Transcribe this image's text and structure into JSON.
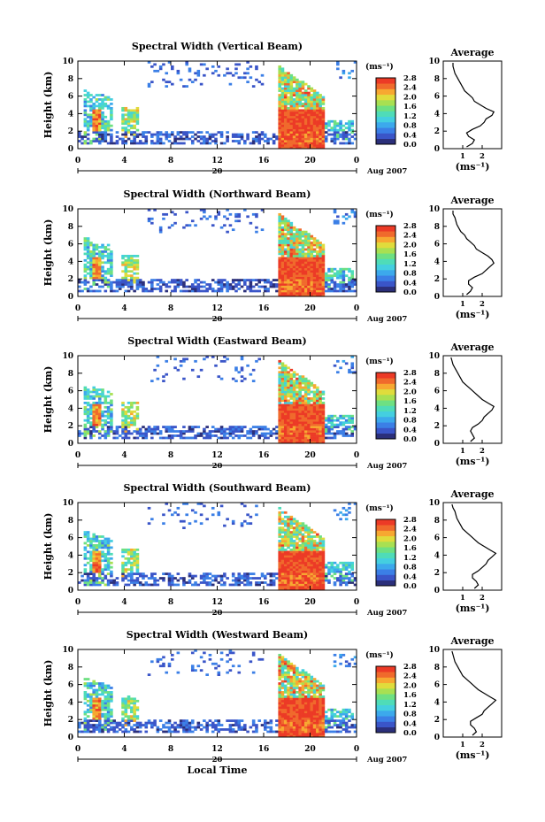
{
  "colorbar": {
    "unit": "(ms⁻¹)",
    "ticks": [
      "2.8",
      "2.4",
      "2.0",
      "1.6",
      "1.2",
      "0.8",
      "0.4",
      "0.0"
    ],
    "range": [
      0,
      2.8
    ],
    "colors": [
      "#2b2f7a",
      "#3a55c8",
      "#3b7fe6",
      "#3ca9ec",
      "#44cfe0",
      "#4fdcb8",
      "#6ee082",
      "#a8e052",
      "#e0dc3c",
      "#f7a831",
      "#f06a2c",
      "#ec3a26"
    ]
  },
  "xaxis": {
    "label": "Local Time",
    "ticks": [
      "0",
      "4",
      "8",
      "12",
      "16",
      "20",
      "0"
    ],
    "date_day": "20",
    "date_month": "Aug 2007",
    "range": [
      0,
      24
    ]
  },
  "yaxis": {
    "label": "Height (km)",
    "ticks": [
      "0",
      "2",
      "4",
      "6",
      "8",
      "10"
    ],
    "range": [
      0,
      10
    ]
  },
  "avg": {
    "title": "Average",
    "xlabel": "(ms⁻¹)",
    "heights": [
      0.2,
      0.6,
      1.0,
      1.4,
      1.8,
      2.2,
      2.6,
      3.0,
      3.4,
      3.8,
      4.2,
      4.6,
      5.0,
      5.4,
      5.8,
      6.2,
      6.6,
      7.0,
      7.4,
      7.8,
      8.2,
      8.6,
      9.0,
      9.4,
      9.8
    ]
  },
  "chart_data": [
    {
      "type": "heatmap",
      "title": "Spectral Width (Vertical Beam)",
      "xlabel": "",
      "ylabel": "Height (km)",
      "xlim": [
        0,
        24
      ],
      "ylim": [
        0,
        10
      ],
      "value_range": [
        0,
        2.8
      ],
      "avg_ticks": [
        "1",
        "2"
      ],
      "avg_profile": {
        "height_km": [
          0.2,
          0.6,
          1.0,
          1.4,
          1.8,
          2.2,
          2.6,
          3.0,
          3.4,
          3.8,
          4.2,
          4.6,
          5.0,
          5.4,
          5.8,
          6.2,
          6.6,
          7.0,
          7.4,
          7.8,
          8.2,
          8.6,
          9.0,
          9.4,
          9.8
        ],
        "width": [
          1.2,
          1.5,
          1.6,
          1.3,
          1.2,
          1.5,
          1.9,
          2.1,
          2.2,
          2.5,
          2.6,
          2.2,
          1.9,
          1.6,
          1.5,
          1.3,
          1.1,
          1.0,
          0.9,
          0.8,
          0.7,
          0.6,
          0.55,
          0.5,
          0.5
        ]
      }
    },
    {
      "type": "heatmap",
      "title": "Spectral Width (Northward Beam)",
      "xlabel": "",
      "ylabel": "Height (km)",
      "xlim": [
        0,
        24
      ],
      "ylim": [
        0,
        10
      ],
      "value_range": [
        0,
        2.8
      ],
      "avg_ticks": [
        "1",
        "2"
      ],
      "avg_profile": {
        "height_km": [
          0.2,
          0.6,
          1.0,
          1.4,
          1.8,
          2.2,
          2.6,
          3.0,
          3.4,
          3.8,
          4.2,
          4.6,
          5.0,
          5.4,
          5.8,
          6.2,
          6.6,
          7.0,
          7.4,
          7.8,
          8.2,
          8.6,
          9.0,
          9.4,
          9.8
        ],
        "width": [
          1.2,
          1.4,
          1.5,
          1.3,
          1.3,
          1.6,
          2.0,
          2.2,
          2.4,
          2.6,
          2.5,
          2.3,
          2.0,
          1.7,
          1.6,
          1.4,
          1.2,
          1.1,
          0.9,
          0.8,
          0.7,
          0.65,
          0.6,
          0.5,
          0.5
        ]
      }
    },
    {
      "type": "heatmap",
      "title": "Spectral Width (Eastward Beam)",
      "xlabel": "",
      "ylabel": "Height (km)",
      "xlim": [
        0,
        24
      ],
      "ylim": [
        0,
        10
      ],
      "value_range": [
        0,
        2.8
      ],
      "avg_ticks": [
        "1",
        "2"
      ],
      "avg_profile": {
        "height_km": [
          0.2,
          0.6,
          1.0,
          1.4,
          1.8,
          2.2,
          2.6,
          3.0,
          3.4,
          3.8,
          4.2,
          4.6,
          5.0,
          5.4,
          5.8,
          6.2,
          6.6,
          7.0,
          7.4,
          7.8,
          8.2,
          8.6,
          9.0,
          9.4,
          9.8
        ],
        "width": [
          1.4,
          1.6,
          1.5,
          1.4,
          1.5,
          1.8,
          2.0,
          2.1,
          2.3,
          2.5,
          2.6,
          2.3,
          2.0,
          1.8,
          1.6,
          1.4,
          1.2,
          1.0,
          0.9,
          0.8,
          0.7,
          0.6,
          0.5,
          0.45,
          0.4
        ]
      }
    },
    {
      "type": "heatmap",
      "title": "Spectral Width (Southward Beam)",
      "xlabel": "",
      "ylabel": "Height (km)",
      "xlim": [
        0,
        24
      ],
      "ylim": [
        0,
        10
      ],
      "value_range": [
        0,
        2.8
      ],
      "avg_ticks": [
        "1",
        "2"
      ],
      "avg_profile": {
        "height_km": [
          0.2,
          0.6,
          1.0,
          1.4,
          1.8,
          2.2,
          2.6,
          3.0,
          3.4,
          3.8,
          4.2,
          4.6,
          5.0,
          5.4,
          5.8,
          6.2,
          6.6,
          7.0,
          7.4,
          7.8,
          8.2,
          8.6,
          9.0,
          9.4,
          9.8
        ],
        "width": [
          1.6,
          1.8,
          1.7,
          1.5,
          1.5,
          1.8,
          2.0,
          2.2,
          2.3,
          2.5,
          2.7,
          2.4,
          2.1,
          1.8,
          1.6,
          1.4,
          1.2,
          1.0,
          0.9,
          0.8,
          0.7,
          0.65,
          0.6,
          0.5,
          0.45
        ]
      }
    },
    {
      "type": "heatmap",
      "title": "Spectral Width (Westward Beam)",
      "xlabel": "Local Time",
      "ylabel": "Height (km)",
      "xlim": [
        0,
        24
      ],
      "ylim": [
        0,
        10
      ],
      "value_range": [
        0,
        2.8
      ],
      "avg_ticks": [
        "1",
        "2"
      ],
      "avg_profile": {
        "height_km": [
          0.2,
          0.6,
          1.0,
          1.4,
          1.8,
          2.2,
          2.6,
          3.0,
          3.4,
          3.8,
          4.2,
          4.6,
          5.0,
          5.4,
          5.8,
          6.2,
          6.6,
          7.0,
          7.4,
          7.8,
          8.2,
          8.6,
          9.0,
          9.4,
          9.8
        ],
        "width": [
          1.5,
          1.7,
          1.6,
          1.4,
          1.4,
          1.7,
          2.0,
          2.1,
          2.3,
          2.5,
          2.7,
          2.4,
          2.1,
          1.8,
          1.6,
          1.4,
          1.2,
          1.0,
          0.9,
          0.8,
          0.7,
          0.6,
          0.55,
          0.5,
          0.45
        ]
      }
    }
  ]
}
